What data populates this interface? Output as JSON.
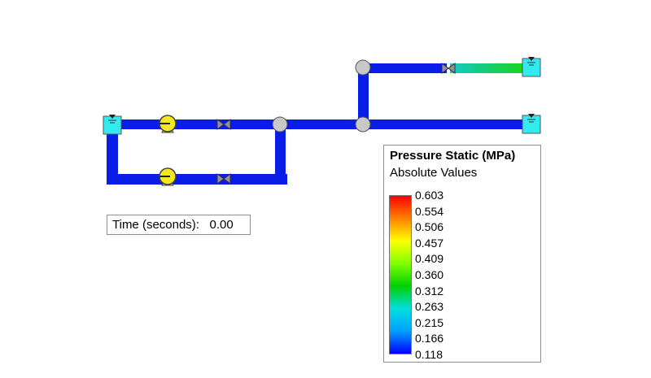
{
  "time_readout": {
    "label": "Time (seconds):",
    "value": "0.00"
  },
  "legend": {
    "title": "Pressure Static (MPa)",
    "subtitle": "Absolute Values",
    "ticks": [
      "0.603",
      "0.554",
      "0.506",
      "0.457",
      "0.409",
      "0.360",
      "0.312",
      "0.263",
      "0.215",
      "0.166",
      "0.118"
    ],
    "gradient_colors": [
      "#ff0000",
      "#ff8000",
      "#ffff00",
      "#80ff00",
      "#00d000",
      "#00e0e0",
      "#00a0ff",
      "#0000ff"
    ]
  },
  "colors": {
    "pipe_low_pressure": "#0a1ce8",
    "pipe_gradient_start": "#12c8c8",
    "pipe_gradient_end": "#18d418",
    "pump": "#f2e81c",
    "reservoir": "#33eaf0",
    "junction": "#c8c8c8",
    "valve": "#9090a0"
  },
  "network": {
    "components": [
      "reservoir-source",
      "pump-1",
      "pump-2",
      "valve-1",
      "valve-2",
      "junction-1",
      "junction-2",
      "junction-3",
      "valve-3",
      "reservoir-upper",
      "reservoir-lower"
    ]
  }
}
